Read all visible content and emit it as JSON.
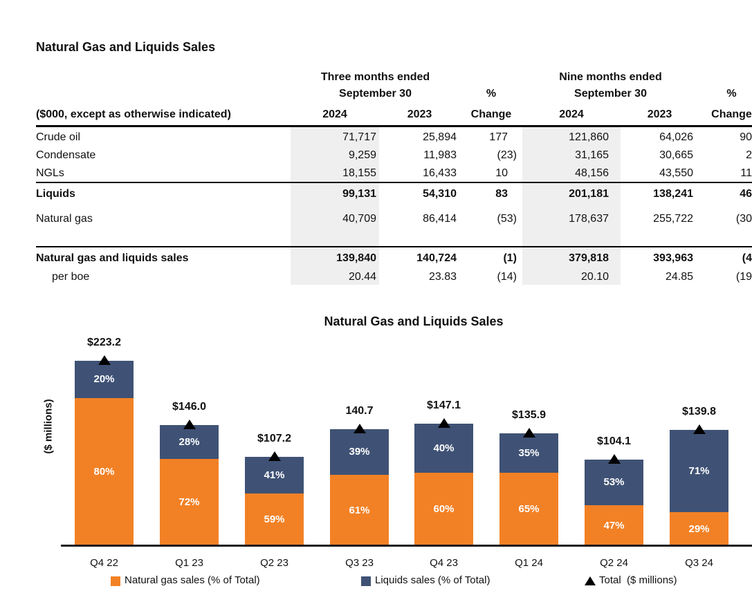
{
  "page": {
    "title": "Natural Gas and Liquids Sales"
  },
  "table": {
    "row_header_label": "($000, except as otherwise indicated)",
    "header": {
      "group1": {
        "line1": "Three months ended",
        "line2": "September 30"
      },
      "group2": {
        "line1": "Nine months ended",
        "line2": "September 30"
      },
      "pct": "%",
      "change": "Change",
      "year_2024": "2024",
      "year_2023": "2023"
    },
    "rows": [
      {
        "label": "Crude oil",
        "bold": false,
        "indent": false,
        "values": [
          "71,717",
          "25,894",
          "177",
          "121,860",
          "64,026",
          "90"
        ]
      },
      {
        "label": "Condensate",
        "bold": false,
        "indent": false,
        "values": [
          "9,259",
          "11,983",
          "(23)",
          "31,165",
          "30,665",
          "2"
        ]
      },
      {
        "label": "NGLs",
        "bold": false,
        "indent": false,
        "values": [
          "18,155",
          "16,433",
          "10",
          "48,156",
          "43,550",
          "11"
        ]
      },
      {
        "label": "Liquids",
        "bold": true,
        "indent": false,
        "values": [
          "99,131",
          "54,310",
          "83",
          "201,181",
          "138,241",
          "46"
        ]
      },
      {
        "label": "Natural gas",
        "bold": false,
        "indent": false,
        "values": [
          "40,709",
          "86,414",
          "(53)",
          "178,637",
          "255,722",
          "(30"
        ]
      },
      {
        "label": "Natural gas and liquids sales",
        "bold": true,
        "indent": false,
        "values": [
          "139,840",
          "140,724",
          "(1)",
          "379,818",
          "393,963",
          "(4"
        ]
      },
      {
        "label": "per boe",
        "bold": false,
        "indent": true,
        "values": [
          "20.44",
          "23.83",
          "(14)",
          "20.10",
          "24.85",
          "(19"
        ]
      }
    ]
  },
  "chart_data": {
    "type": "bar",
    "subtype": "stacked-percent-with-total-markers",
    "title": "Natural Gas and Liquids Sales",
    "ylabel": "($ millions)",
    "categories": [
      "Q4 22",
      "Q1 23",
      "Q2 23",
      "Q3 23",
      "Q4 23",
      "Q1 24",
      "Q2 24",
      "Q3 24"
    ],
    "series": [
      {
        "name": "Natural gas sales (% of Total)",
        "color": "#F28125",
        "values_pct": [
          80,
          72,
          59,
          61,
          60,
          65,
          47,
          29
        ]
      },
      {
        "name": "Liquids sales (% of Total)",
        "color": "#3F5275",
        "values_pct": [
          20,
          28,
          41,
          39,
          40,
          35,
          53,
          71
        ]
      }
    ],
    "totals_millions": [
      223.2,
      146.0,
      107.2,
      140.7,
      147.1,
      135.9,
      104.1,
      139.8
    ],
    "total_labels": [
      "$223.2",
      "$146.0",
      "$107.2",
      "140.7",
      "$147.1",
      "$135.9",
      "$104.1",
      "$139.8"
    ],
    "gas_segment_labels": [
      "80%",
      "72%",
      "59%",
      "61%",
      "60%",
      "65%",
      "47%",
      "29%"
    ],
    "liquids_segment_labels": [
      "20%",
      "28%",
      "41%",
      "39%",
      "40%",
      "35%",
      "53%",
      "71%"
    ],
    "legend": [
      {
        "marker": "square",
        "color": "#F28125",
        "label": "Natural gas sales (% of Total)"
      },
      {
        "marker": "square",
        "color": "#3F5275",
        "label": "Liquids sales (% of Total)"
      },
      {
        "marker": "triangle",
        "color": "#000000",
        "label": "Total  ($ millions)"
      }
    ],
    "axis": {
      "grid": false,
      "y_axis_line": false,
      "x_axis_line": true
    }
  }
}
